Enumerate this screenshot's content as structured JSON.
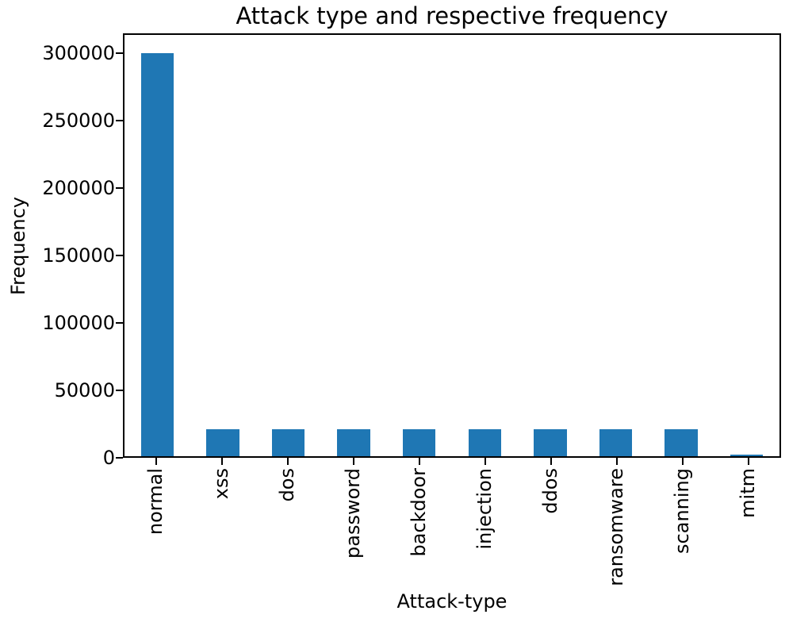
{
  "chart_data": {
    "type": "bar",
    "title": "Attack type and respective frequency",
    "xlabel": "Attack-type",
    "ylabel": "Frequency",
    "categories": [
      "normal",
      "xss",
      "dos",
      "password",
      "backdoor",
      "injection",
      "ddos",
      "ransomware",
      "scanning",
      "mitm"
    ],
    "values": [
      300000,
      20000,
      20000,
      20000,
      20000,
      20000,
      20000,
      20000,
      20000,
      1000
    ],
    "yticks": [
      0,
      50000,
      100000,
      150000,
      200000,
      250000,
      300000
    ],
    "ylim": [
      0,
      315000
    ],
    "x_tick_rotation": 90,
    "grid": false,
    "legend": null,
    "bar_color": "#1f77b4",
    "axis_color": "#000000",
    "background_color": "#ffffff"
  }
}
